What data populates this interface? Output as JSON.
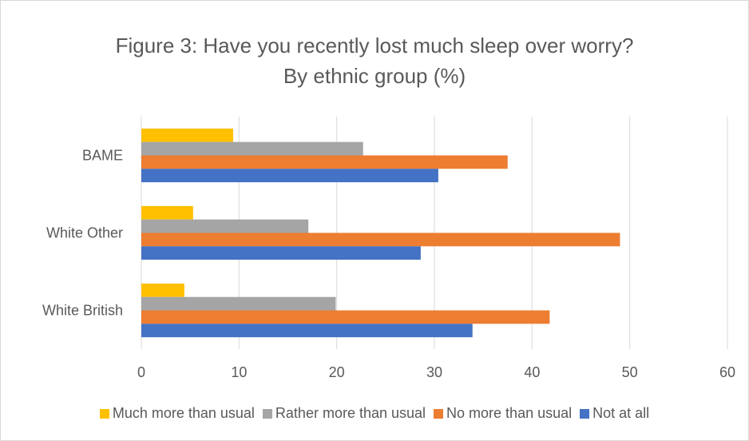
{
  "chart_data": {
    "type": "bar",
    "orientation": "horizontal",
    "title_line1": "Figure 3: Have you recently lost much sleep over worry?",
    "title_line2": "By ethnic group (%)",
    "categories": [
      "BAME",
      "White Other",
      "White British"
    ],
    "series": [
      {
        "name": "Much more than usual",
        "color": "#ffc000",
        "values": [
          9.4,
          5.3,
          4.4
        ]
      },
      {
        "name": "Rather more than usual",
        "color": "#a5a5a5",
        "values": [
          22.7,
          17.1,
          19.9
        ]
      },
      {
        "name": "No more than usual",
        "color": "#ed7d31",
        "values": [
          37.5,
          49.0,
          41.8
        ]
      },
      {
        "name": "Not at all",
        "color": "#4472c4",
        "values": [
          30.4,
          28.6,
          33.9
        ]
      }
    ],
    "xlim": [
      0,
      60
    ],
    "xticks": [
      "0",
      "10",
      "20",
      "30",
      "40",
      "50",
      "60"
    ],
    "grid": true,
    "legend_position": "bottom"
  }
}
